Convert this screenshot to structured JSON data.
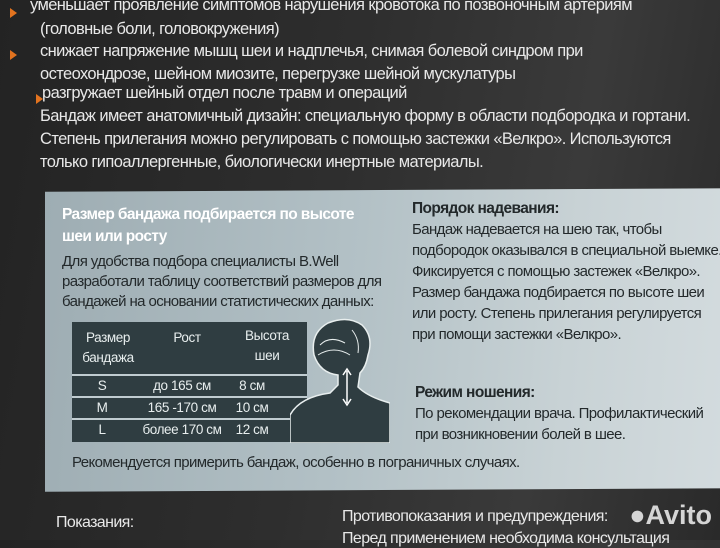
{
  "top": {
    "bullets": [
      [
        "уменьшает проявление симптомов нарушения кровотока по позвоночным артериям",
        "(головные боли, головокружения)"
      ],
      [
        "снижает напряжение мышц шеи  и надплечья, снимая болевой синдром при",
        "остеохондрозе, шейном миозите, перегрузке шейной мускулатуры"
      ],
      [
        "разгружает шейный отдел после травм и операций"
      ]
    ],
    "paragraph": [
      "Бандаж имеет анатомичный дизайн: специальную форму в области подбородка и гортани.",
      "Степень прилегания можно регулировать  с помощью застежки «Велкро».  Используются",
      "только гипоаллергенные, биологически инертные материалы."
    ],
    "bullet_color": "#e2731f"
  },
  "size_panel": {
    "heading": [
      "Размер бандажа подбирается по высоте",
      "шеи или росту"
    ],
    "intro": [
      "Для удобства подбора специалисты B.Well",
      "разработали таблицу соответствий размеров для",
      "бандажей на основании статистических данных:"
    ],
    "table": {
      "headers": [
        [
          "Размер",
          "бандажа"
        ],
        [
          "Рост"
        ],
        [
          "Высота",
          "шеи"
        ]
      ],
      "rows": [
        [
          "S",
          "до 165 см",
          "8 см"
        ],
        [
          "M",
          "165 -170 см",
          "10 см"
        ],
        [
          "L",
          "более 170 см",
          "12 см"
        ]
      ]
    },
    "note": "Рекомендуется примерить бандаж, особенно в пограничных случаях."
  },
  "putting_on": {
    "heading": "Порядок надевания:",
    "lines": [
      "Бандаж надевается на шею так, чтобы",
      "подбородок оказывался в специальной выемке.",
      "Фиксируется с помощью застежек «Велкро».",
      "Размер бандажа подбирается по высоте  шеи",
      "или росту. Степень прилегания регулируется",
      "при помощи застежки «Велкро»."
    ]
  },
  "wearing": {
    "heading": "Режим ношения:",
    "lines": [
      "По рекомендации врача. Профилактический",
      "при возникновении болей в шее."
    ]
  },
  "bottom": {
    "indications": "Показания:",
    "contra_heading": "Противопоказания и предупреждения:",
    "contra_line": "Перед применением необходима консультация"
  },
  "watermark": "Avito"
}
